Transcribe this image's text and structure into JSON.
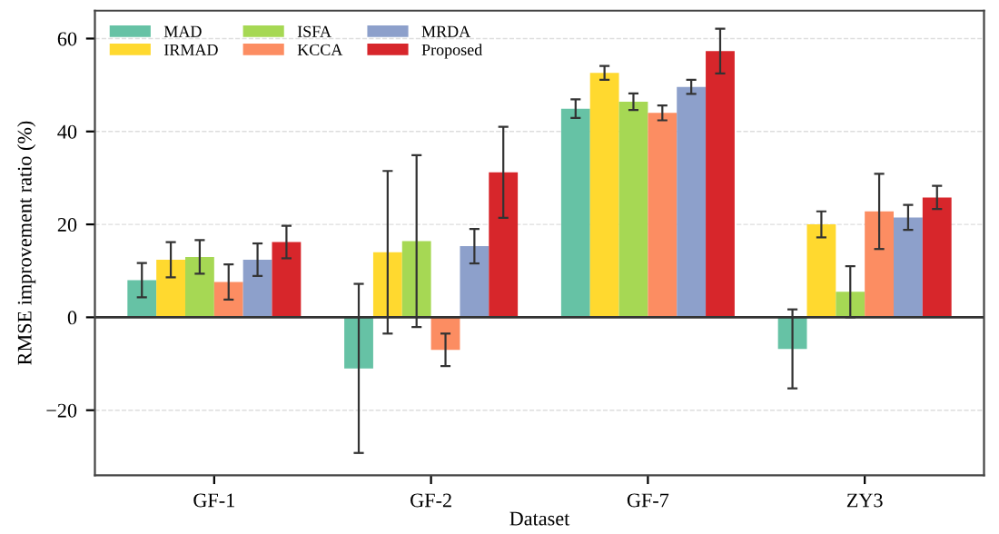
{
  "chart_data": {
    "type": "bar",
    "xlabel": "Dataset",
    "ylabel": "RMSE improvement ratio (%)",
    "categories": [
      "GF-1",
      "GF-2",
      "GF-7",
      "ZY3"
    ],
    "series": [
      {
        "name": "MAD",
        "color": "#66c2a5",
        "values": [
          8.0,
          -11.0,
          44.9,
          -6.8
        ],
        "errors": [
          3.7,
          18.2,
          2.0,
          8.5
        ]
      },
      {
        "name": "IRMAD",
        "color": "#ffd92f",
        "values": [
          12.4,
          14.0,
          52.6,
          20.0
        ],
        "errors": [
          3.8,
          17.5,
          1.5,
          2.8
        ]
      },
      {
        "name": "ISFA",
        "color": "#a6d854",
        "values": [
          13.0,
          16.4,
          46.4,
          5.5
        ],
        "errors": [
          3.6,
          18.5,
          1.8,
          5.5
        ]
      },
      {
        "name": "KCCA",
        "color": "#fc8d62",
        "values": [
          7.6,
          -7.0,
          44.0,
          22.8
        ],
        "errors": [
          3.8,
          3.5,
          1.6,
          8.1
        ]
      },
      {
        "name": "MRDA",
        "color": "#8da0cb",
        "values": [
          12.4,
          15.3,
          49.6,
          21.5
        ],
        "errors": [
          3.5,
          3.7,
          1.5,
          2.7
        ]
      },
      {
        "name": "Proposed",
        "color": "#d7262b",
        "values": [
          16.2,
          31.2,
          57.3,
          25.8
        ],
        "errors": [
          3.5,
          9.8,
          4.8,
          2.5
        ]
      }
    ],
    "ylim": [
      -34,
      66
    ],
    "yticks": [
      {
        "value": -20,
        "label": "−20"
      },
      0,
      20,
      40,
      60
    ],
    "ref_lines": [
      {
        "axis": "y",
        "value": 0,
        "color": "#333333",
        "line_style": "solid"
      }
    ],
    "grid": "y",
    "legend": "top left"
  }
}
